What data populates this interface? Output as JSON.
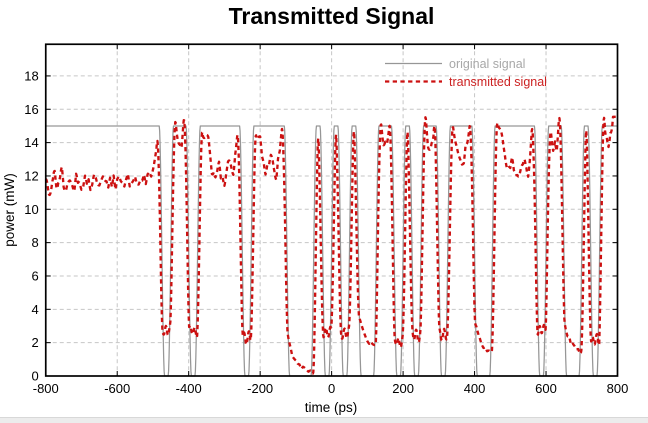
{
  "chart_data": {
    "type": "line",
    "title": "Transmitted Signal",
    "xlabel": "time (ps)",
    "ylabel": "power (mW)",
    "xlim": [
      -800,
      800
    ],
    "ylim": [
      0,
      19.9
    ],
    "xticks": [
      -800,
      -600,
      -400,
      -200,
      0,
      200,
      400,
      600,
      800
    ],
    "yticks": [
      0,
      2,
      4,
      6,
      8,
      10,
      12,
      14,
      16,
      18
    ],
    "grid": true,
    "grid_color": "#c6c6c6",
    "axis_color": "#000000",
    "legend_position": "top-right",
    "legend": {
      "items": [
        {
          "label": "original signal",
          "text_color": "#a8a8a8",
          "line_color": "#969696",
          "style": "solid"
        },
        {
          "label": "transmitted signal",
          "text_color": "#cc2222",
          "line_color": "#cc1010",
          "style": "dashed"
        }
      ]
    },
    "nrz": {
      "bit_period_ps": 25,
      "t_start_ps": -800,
      "bits": [
        1,
        1,
        1,
        1,
        1,
        1,
        1,
        1,
        1,
        1,
        1,
        1,
        1,
        0,
        1,
        1,
        0,
        1,
        1,
        1,
        1,
        1,
        0,
        1,
        1,
        1,
        1,
        0,
        0,
        0,
        1,
        0,
        1,
        0,
        1,
        0,
        0,
        1,
        1,
        0,
        1,
        0,
        1,
        1,
        0,
        1,
        1,
        1,
        0,
        0,
        1,
        1,
        1,
        1,
        1,
        0,
        1,
        1,
        0,
        0,
        1,
        0,
        1,
        1
      ]
    },
    "series": [
      {
        "name": "original signal",
        "color": "#969696",
        "style": "solid",
        "line_width": 1.25,
        "high_mw": 15.0,
        "low_mw": 0.0,
        "edge_half_ps": 7.5
      },
      {
        "name": "transmitted signal",
        "color": "#cc1010",
        "style": "dashed",
        "line_width": 2.35,
        "dash": [
          4.3,
          3.4
        ],
        "saturation_mw": 11.65,
        "overshoot_peak_mw": 15.2,
        "end_spike_mw": 14.2,
        "low_single_mw": 2.4,
        "low_double_mw": 1.1,
        "low_deep_mw": 0.22,
        "start_level_mw": 10.8,
        "noise_mw": 0.3,
        "rise_lag_ps": 6,
        "fall_lead_ps": 6,
        "edge_half_ps": 8,
        "seed": 11
      }
    ]
  }
}
